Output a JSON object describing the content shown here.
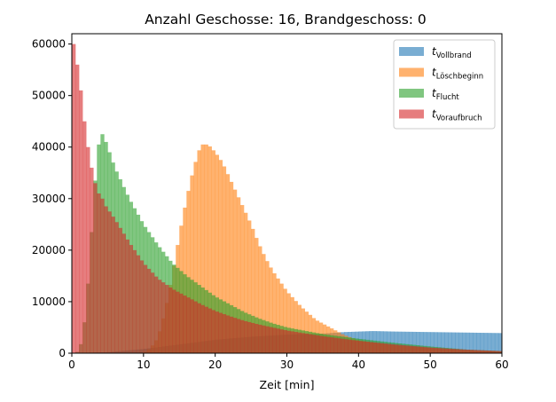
{
  "chart_data": {
    "type": "bar",
    "title": "Anzahl Geschosse: 16, Brandgeschoss: 0",
    "xlabel": "Zeit [min]",
    "ylabel": "",
    "xlim": [
      0,
      60
    ],
    "ylim": [
      0,
      62000
    ],
    "x_ticks": [
      "0",
      "10",
      "20",
      "30",
      "40",
      "50",
      "60"
    ],
    "y_ticks": [
      "0",
      "10000",
      "20000",
      "30000",
      "40000",
      "50000",
      "60000"
    ],
    "x_tick_values": [
      0,
      10,
      20,
      30,
      40,
      50,
      60
    ],
    "y_tick_values": [
      0,
      10000,
      20000,
      30000,
      40000,
      50000,
      60000
    ],
    "bin_width_min": 0.5,
    "legend_position": "top-right",
    "grid": false,
    "series": [
      {
        "name": "t_Vollbrand",
        "label_main": "t",
        "label_sub": "Vollbrand",
        "color": "#1f77b4",
        "anchors": [
          [
            0,
            0
          ],
          [
            5,
            200
          ],
          [
            10,
            800
          ],
          [
            15,
            1700
          ],
          [
            20,
            2600
          ],
          [
            25,
            3200
          ],
          [
            30,
            3600
          ],
          [
            35,
            3800
          ],
          [
            38,
            4100
          ],
          [
            42,
            4300
          ],
          [
            45,
            4200
          ],
          [
            50,
            4100
          ],
          [
            55,
            4000
          ],
          [
            60,
            3900
          ]
        ]
      },
      {
        "name": "t_Löschbeginn",
        "label_main": "t",
        "label_sub": "Löschbeginn",
        "color": "#ff7f0e",
        "anchors": [
          [
            0,
            0
          ],
          [
            10,
            0
          ],
          [
            11,
            1000
          ],
          [
            12,
            3000
          ],
          [
            13,
            8000
          ],
          [
            14,
            15000
          ],
          [
            15,
            23000
          ],
          [
            16,
            30000
          ],
          [
            17,
            36000
          ],
          [
            18,
            40500
          ],
          [
            19,
            40500
          ],
          [
            20,
            39000
          ],
          [
            21,
            37000
          ],
          [
            22,
            34000
          ],
          [
            23,
            31000
          ],
          [
            24,
            28000
          ],
          [
            25,
            25000
          ],
          [
            26,
            21500
          ],
          [
            27,
            18500
          ],
          [
            28,
            16000
          ],
          [
            29,
            14000
          ],
          [
            30,
            12000
          ],
          [
            32,
            9000
          ],
          [
            34,
            6500
          ],
          [
            36,
            5000
          ],
          [
            38,
            3500
          ],
          [
            40,
            2500
          ],
          [
            45,
            1500
          ],
          [
            50,
            1000
          ],
          [
            55,
            500
          ],
          [
            60,
            300
          ]
        ]
      },
      {
        "name": "t_Flucht",
        "label_main": "t",
        "label_sub": "Flucht",
        "color": "#2ca02c",
        "anchors": [
          [
            0,
            0
          ],
          [
            0.5,
            0
          ],
          [
            1,
            500
          ],
          [
            1.5,
            3000
          ],
          [
            2,
            9000
          ],
          [
            2.5,
            18000
          ],
          [
            3,
            29000
          ],
          [
            3.5,
            38000
          ],
          [
            4,
            43000
          ],
          [
            4.5,
            42000
          ],
          [
            5,
            40000
          ],
          [
            6,
            36000
          ],
          [
            7,
            33000
          ],
          [
            8,
            30000
          ],
          [
            9,
            27500
          ],
          [
            10,
            25000
          ],
          [
            12,
            21000
          ],
          [
            14,
            17500
          ],
          [
            16,
            15000
          ],
          [
            18,
            13000
          ],
          [
            20,
            11000
          ],
          [
            22,
            9500
          ],
          [
            24,
            8000
          ],
          [
            26,
            6800
          ],
          [
            28,
            5800
          ],
          [
            30,
            5000
          ],
          [
            35,
            3700
          ],
          [
            40,
            2800
          ],
          [
            45,
            2000
          ],
          [
            50,
            1300
          ],
          [
            55,
            700
          ],
          [
            60,
            400
          ]
        ]
      },
      {
        "name": "t_Voraufbruch",
        "label_main": "t",
        "label_sub": "Voraufbruch",
        "color": "#d62728",
        "anchors": [
          [
            0,
            3000
          ],
          [
            0.25,
            60000
          ],
          [
            0.75,
            56000
          ],
          [
            1.25,
            51000
          ],
          [
            1.75,
            45000
          ],
          [
            2.25,
            40000
          ],
          [
            2.75,
            36000
          ],
          [
            3.25,
            33000
          ],
          [
            3.75,
            31000
          ],
          [
            4.25,
            30000
          ],
          [
            4.75,
            28500
          ],
          [
            6,
            26000
          ],
          [
            8,
            21500
          ],
          [
            10,
            17500
          ],
          [
            12,
            14500
          ],
          [
            14,
            12500
          ],
          [
            16,
            11000
          ],
          [
            18,
            9500
          ],
          [
            20,
            8200
          ],
          [
            22,
            7200
          ],
          [
            24,
            6300
          ],
          [
            26,
            5600
          ],
          [
            28,
            5000
          ],
          [
            30,
            4400
          ],
          [
            35,
            3300
          ],
          [
            40,
            2400
          ],
          [
            45,
            1700
          ],
          [
            50,
            1100
          ],
          [
            55,
            700
          ],
          [
            60,
            400
          ]
        ]
      }
    ]
  }
}
